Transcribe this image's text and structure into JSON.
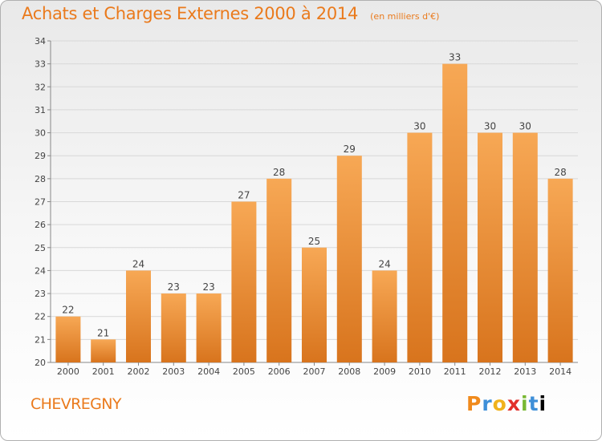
{
  "header": {
    "title": "Achats et Charges Externes 2000 à 2014",
    "unit": "(en milliers d'€)"
  },
  "footer": {
    "commune": "CHEVREGNY",
    "logo_text": "Proxiti"
  },
  "colors": {
    "accent": "#ea7a1c",
    "bar_light": "#f7a855",
    "bar_dark": "#d8741d"
  },
  "chart_data": {
    "type": "bar",
    "title": "Achats et Charges Externes 2000 à 2014",
    "subtitle": "(en milliers d'€)",
    "xlabel": "",
    "ylabel": "",
    "categories": [
      "2000",
      "2001",
      "2002",
      "2003",
      "2004",
      "2005",
      "2006",
      "2007",
      "2008",
      "2009",
      "2010",
      "2011",
      "2012",
      "2013",
      "2014"
    ],
    "values": [
      22,
      21,
      24,
      23,
      23,
      27,
      28,
      25,
      29,
      24,
      30,
      33,
      30,
      30,
      28
    ],
    "ylim": [
      20,
      34
    ],
    "yticks": [
      20,
      21,
      22,
      23,
      24,
      25,
      26,
      27,
      28,
      29,
      30,
      31,
      32,
      33,
      34
    ],
    "grid": true,
    "data_labels": true
  }
}
